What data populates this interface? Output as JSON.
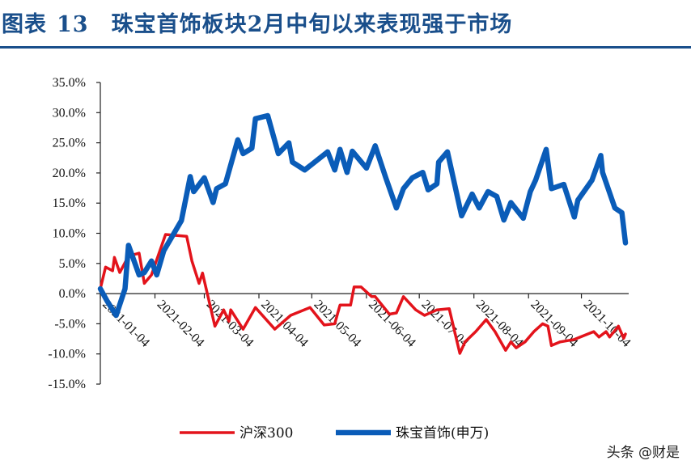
{
  "title": {
    "prefix": "图表",
    "number": "13",
    "text": "珠宝首饰板块2月中旬以来表现强于市场"
  },
  "watermark": "头条 @财是",
  "chart_data": {
    "type": "line",
    "title": "",
    "xlabel": "",
    "ylabel": "",
    "ylim": [
      -15,
      35
    ],
    "xlim": [
      "2021-01-04",
      "2021-10-29"
    ],
    "yticks": [
      35,
      30,
      25,
      20,
      15,
      10,
      5,
      0,
      -5,
      -10,
      -15
    ],
    "ytick_labels": [
      "35.0%",
      "30.0%",
      "25.0%",
      "20.0%",
      "15.0%",
      "10.0%",
      "5.0%",
      "0.0%",
      "-5.0%",
      "-10.0%",
      "-15.0%"
    ],
    "xticks": [
      "2021-01-04",
      "2021-02-04",
      "2021-03-04",
      "2021-04-04",
      "2021-05-04",
      "2021-06-04",
      "2021-07-04",
      "2021-08-04",
      "2021-09-04",
      "2021-10-04"
    ],
    "grid": false,
    "legend": "bottom",
    "series": [
      {
        "name": "沪深300",
        "color": "#e3131b",
        "points": [
          [
            "2021-01-04",
            0.8
          ],
          [
            "2021-01-07",
            4.4
          ],
          [
            "2021-01-11",
            3.8
          ],
          [
            "2021-01-12",
            6.0
          ],
          [
            "2021-01-15",
            3.5
          ],
          [
            "2021-01-20",
            6.2
          ],
          [
            "2021-01-26",
            6.7
          ],
          [
            "2021-01-29",
            1.7
          ],
          [
            "2021-02-02",
            3.1
          ],
          [
            "2021-02-10",
            9.8
          ],
          [
            "2021-02-22",
            9.5
          ],
          [
            "2021-02-25",
            5.4
          ],
          [
            "2021-03-01",
            1.7
          ],
          [
            "2021-03-03",
            3.4
          ],
          [
            "2021-03-10",
            -5.4
          ],
          [
            "2021-03-15",
            -2.7
          ],
          [
            "2021-03-18",
            -4.6
          ],
          [
            "2021-03-19",
            -2.7
          ],
          [
            "2021-03-26",
            -5.9
          ],
          [
            "2021-04-02",
            -2.3
          ],
          [
            "2021-04-13",
            -5.9
          ],
          [
            "2021-04-22",
            -3.6
          ],
          [
            "2021-05-03",
            -2.3
          ],
          [
            "2021-05-11",
            -5.2
          ],
          [
            "2021-05-17",
            -5.0
          ],
          [
            "2021-05-20",
            -1.9
          ],
          [
            "2021-05-26",
            -1.9
          ],
          [
            "2021-05-28",
            1.1
          ],
          [
            "2021-06-01",
            1.1
          ],
          [
            "2021-06-07",
            -0.5
          ],
          [
            "2021-06-09",
            -0.5
          ],
          [
            "2021-06-17",
            -3.4
          ],
          [
            "2021-06-21",
            -3.2
          ],
          [
            "2021-06-25",
            -0.5
          ],
          [
            "2021-07-02",
            -2.7
          ],
          [
            "2021-07-07",
            -3.6
          ],
          [
            "2021-07-14",
            -2.7
          ],
          [
            "2021-07-21",
            -2.5
          ],
          [
            "2021-07-27",
            -9.9
          ],
          [
            "2021-07-30",
            -8.0
          ],
          [
            "2021-08-05",
            -6.3
          ],
          [
            "2021-08-11",
            -4.3
          ],
          [
            "2021-08-16",
            -6.3
          ],
          [
            "2021-08-22",
            -9.4
          ],
          [
            "2021-08-25",
            -8.0
          ],
          [
            "2021-08-28",
            -9.0
          ],
          [
            "2021-09-02",
            -8.0
          ],
          [
            "2021-09-07",
            -6.3
          ],
          [
            "2021-09-12",
            -5.0
          ],
          [
            "2021-09-15",
            -5.4
          ],
          [
            "2021-09-17",
            -8.6
          ],
          [
            "2021-09-22",
            -8.0
          ],
          [
            "2021-09-30",
            -7.6
          ],
          [
            "2021-10-11",
            -6.3
          ],
          [
            "2021-10-14",
            -7.2
          ],
          [
            "2021-10-18",
            -6.3
          ],
          [
            "2021-10-20",
            -7.2
          ],
          [
            "2021-10-25",
            -5.4
          ],
          [
            "2021-10-28",
            -7.4
          ],
          [
            "2021-10-29",
            -6.7
          ]
        ]
      },
      {
        "name": "珠宝首饰(申万)",
        "color": "#0a5cb8",
        "points": [
          [
            "2021-01-04",
            0.8
          ],
          [
            "2021-01-08",
            -1.3
          ],
          [
            "2021-01-13",
            -3.6
          ],
          [
            "2021-01-18",
            0.8
          ],
          [
            "2021-01-20",
            8.0
          ],
          [
            "2021-01-26",
            3.1
          ],
          [
            "2021-01-29",
            3.5
          ],
          [
            "2021-02-02",
            5.4
          ],
          [
            "2021-02-05",
            3.1
          ],
          [
            "2021-02-09",
            7.1
          ],
          [
            "2021-02-19",
            12.1
          ],
          [
            "2021-02-24",
            19.4
          ],
          [
            "2021-02-26",
            16.9
          ],
          [
            "2021-03-04",
            19.2
          ],
          [
            "2021-03-09",
            15.1
          ],
          [
            "2021-03-11",
            17.4
          ],
          [
            "2021-03-16",
            18.2
          ],
          [
            "2021-03-23",
            25.5
          ],
          [
            "2021-03-26",
            23.2
          ],
          [
            "2021-03-31",
            24.1
          ],
          [
            "2021-04-02",
            29.0
          ],
          [
            "2021-04-09",
            29.5
          ],
          [
            "2021-04-15",
            23.2
          ],
          [
            "2021-04-21",
            25.0
          ],
          [
            "2021-04-23",
            21.8
          ],
          [
            "2021-04-30",
            20.5
          ],
          [
            "2021-05-13",
            23.5
          ],
          [
            "2021-05-17",
            20.5
          ],
          [
            "2021-05-20",
            23.9
          ],
          [
            "2021-05-24",
            20.1
          ],
          [
            "2021-05-27",
            23.6
          ],
          [
            "2021-06-04",
            20.8
          ],
          [
            "2021-06-09",
            24.5
          ],
          [
            "2021-06-15",
            19.2
          ],
          [
            "2021-06-21",
            14.2
          ],
          [
            "2021-06-25",
            17.4
          ],
          [
            "2021-06-30",
            19.2
          ],
          [
            "2021-07-06",
            20.1
          ],
          [
            "2021-07-09",
            17.2
          ],
          [
            "2021-07-14",
            18.2
          ],
          [
            "2021-07-15",
            21.8
          ],
          [
            "2021-07-20",
            23.5
          ],
          [
            "2021-07-28",
            12.9
          ],
          [
            "2021-08-03",
            16.5
          ],
          [
            "2021-08-07",
            14.2
          ],
          [
            "2021-08-12",
            16.9
          ],
          [
            "2021-08-17",
            16.1
          ],
          [
            "2021-08-21",
            12.2
          ],
          [
            "2021-08-25",
            15.1
          ],
          [
            "2021-09-01",
            12.5
          ],
          [
            "2021-09-05",
            16.9
          ],
          [
            "2021-09-08",
            18.8
          ],
          [
            "2021-09-14",
            23.9
          ],
          [
            "2021-09-17",
            17.4
          ],
          [
            "2021-09-24",
            18.1
          ],
          [
            "2021-09-30",
            12.7
          ],
          [
            "2021-10-02",
            15.5
          ],
          [
            "2021-10-10",
            18.8
          ],
          [
            "2021-10-15",
            22.9
          ],
          [
            "2021-10-16",
            20.1
          ],
          [
            "2021-10-23",
            14.2
          ],
          [
            "2021-10-27",
            13.4
          ],
          [
            "2021-10-29",
            8.4
          ]
        ]
      }
    ]
  }
}
